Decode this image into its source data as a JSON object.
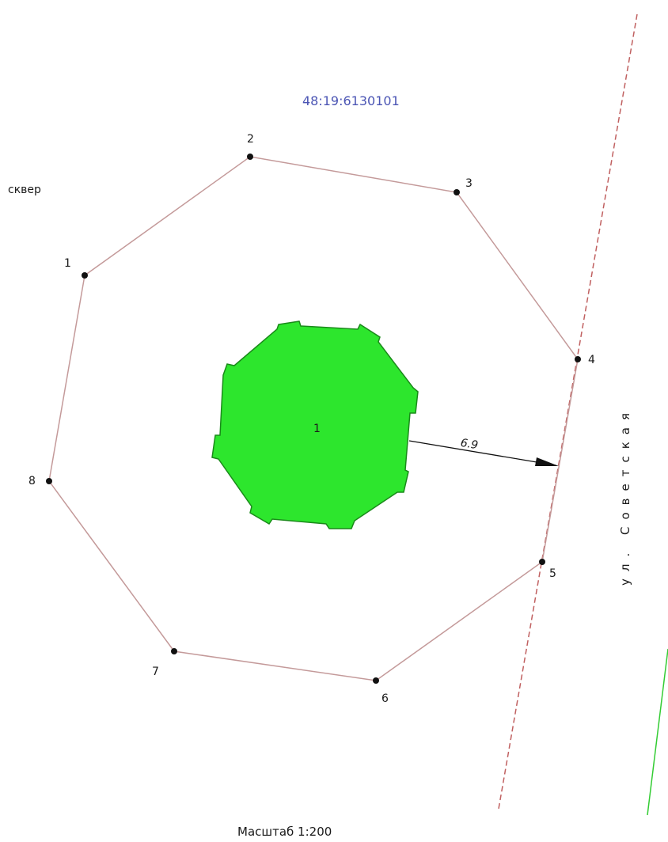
{
  "cadastral_number": "48:19:6130101",
  "area_label": "сквер",
  "street_label": "ул. Советская",
  "object_label": "1",
  "distance_label": "6.9",
  "scale_label": "Масштаб 1:200",
  "points": [
    {
      "label": "1"
    },
    {
      "label": "2"
    },
    {
      "label": "3"
    },
    {
      "label": "4"
    },
    {
      "label": "5"
    },
    {
      "label": "6"
    },
    {
      "label": "7"
    },
    {
      "label": "8"
    }
  ],
  "colors": {
    "parcel_boundary": "#c49a9a",
    "road_line": "#c06060",
    "object_fill": "#2de62d",
    "object_stroke": "#1a8a1a",
    "cadastral_text": "#4b55b4",
    "green_edge": "#33cc33"
  }
}
